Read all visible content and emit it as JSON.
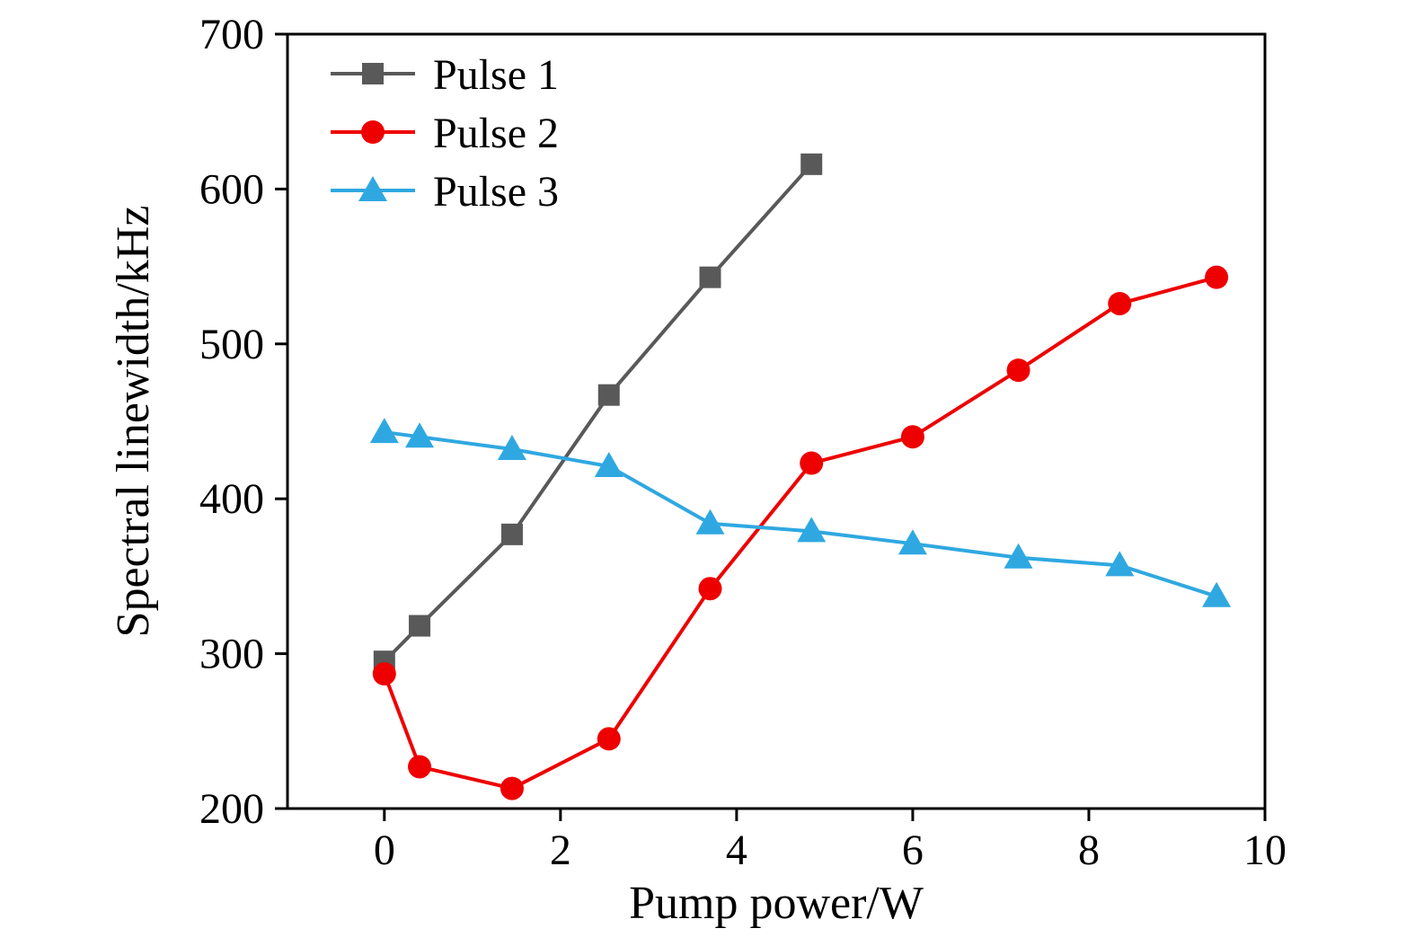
{
  "figure": {
    "background": "#ffffff",
    "frame_color": "#000000"
  },
  "chart_data": {
    "type": "line",
    "title": "",
    "xlabel": "Pump power/W",
    "ylabel": "Spectral linewidth/kHz",
    "xlim": [
      -1.1,
      10.0
    ],
    "ylim": [
      200,
      700
    ],
    "xticks": [
      0,
      2,
      4,
      6,
      8,
      10
    ],
    "yticks": [
      200,
      300,
      400,
      500,
      600,
      700
    ],
    "grid": false,
    "legend_position": "top-left",
    "series": [
      {
        "name": "Pulse 1",
        "color": "#595959",
        "marker": "square",
        "x": [
          0,
          0.4,
          1.45,
          2.55,
          3.7,
          4.85
        ],
        "y": [
          295,
          318,
          377,
          467,
          543,
          616
        ]
      },
      {
        "name": "Pulse 2",
        "color": "#ee0000",
        "marker": "circle",
        "x": [
          0,
          0.4,
          1.45,
          2.55,
          3.7,
          4.85,
          6.0,
          7.2,
          8.35,
          9.45
        ],
        "y": [
          287,
          227,
          213,
          245,
          342,
          423,
          440,
          483,
          526,
          543
        ]
      },
      {
        "name": "Pulse 3",
        "color": "#2fa8e1",
        "marker": "triangle",
        "x": [
          0,
          0.4,
          1.45,
          2.55,
          3.7,
          4.85,
          6.0,
          7.2,
          8.35,
          9.45
        ],
        "y": [
          443,
          440,
          432,
          421,
          384,
          379,
          371,
          362,
          357,
          337
        ]
      }
    ]
  }
}
